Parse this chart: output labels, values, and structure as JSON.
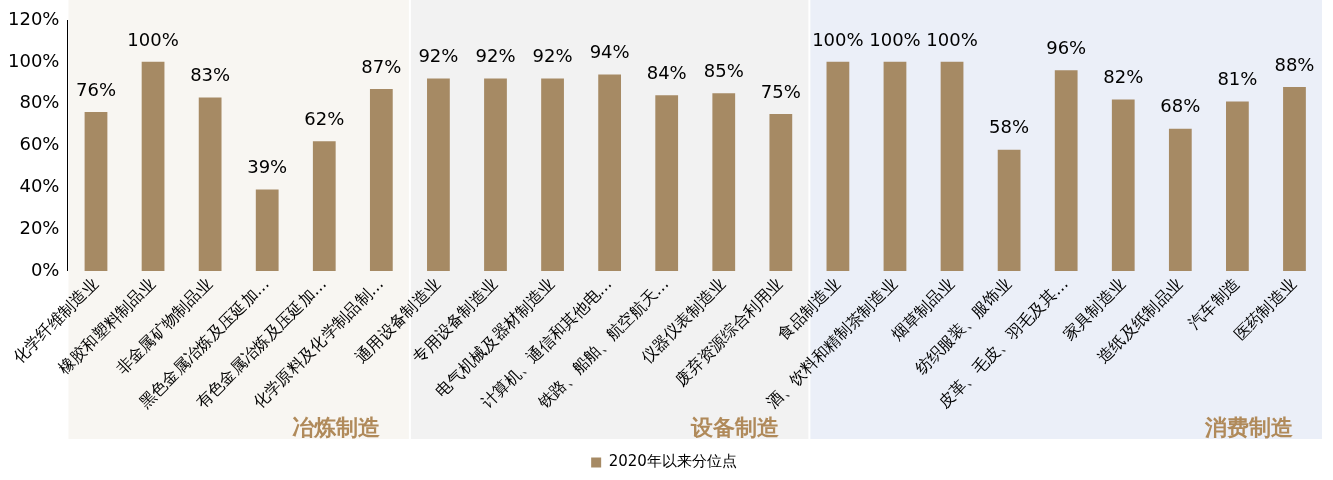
{
  "chart_data": {
    "type": "bar",
    "categories": [
      "化学纤维制造业",
      "橡胶和塑料制品业",
      "非金属矿物制品业",
      "黑色金属冶炼及压延加…",
      "有色金属冶炼及压延加…",
      "化学原料及化学制品制…",
      "通用设备制造业",
      "专用设备制造业",
      "电气机械及器材制造业",
      "计算机、通信和其他电…",
      "铁路、船舶、航空航天…",
      "仪器仪表制造业",
      "废弃资源综合利用业",
      "食品制造业",
      "酒、饮料和精制茶制造业",
      "烟草制品业",
      "纺织服装、服饰业",
      "皮革、毛皮、羽毛及其…",
      "家具制造业",
      "造纸及纸制品业",
      "汽车制造",
      "医药制造业"
    ],
    "series": [
      {
        "name": "2020年以来分位点",
        "color": "#a68a64",
        "values": [
          76,
          100,
          83,
          39,
          62,
          87,
          92,
          92,
          92,
          94,
          84,
          85,
          75,
          100,
          100,
          100,
          58,
          96,
          82,
          68,
          81,
          88
        ],
        "value_labels": [
          "76%",
          "100%",
          "83%",
          "39%",
          "62%",
          "87%",
          "92%",
          "92%",
          "92%",
          "94%",
          "84%",
          "85%",
          "75%",
          "100%",
          "100%",
          "100%",
          "58%",
          "96%",
          "82%",
          "68%",
          "81%",
          "88%"
        ]
      }
    ],
    "ylim": [
      0,
      120
    ],
    "yticks": [
      {
        "value": 0,
        "label": "0%"
      },
      {
        "value": 20,
        "label": "20%"
      },
      {
        "value": 40,
        "label": "40%"
      },
      {
        "value": 60,
        "label": "60%"
      },
      {
        "value": 80,
        "label": "80%"
      },
      {
        "value": 100,
        "label": "100%"
      },
      {
        "value": 120,
        "label": "120%"
      }
    ],
    "grid": false,
    "legend": "bottom",
    "bands": [
      {
        "axis": "x",
        "from": "化学纤维制造业",
        "to": "化学原料及化学制品制…",
        "label": "冶炼制造",
        "color": "#f8f6f2"
      },
      {
        "axis": "x",
        "from": "通用设备制造业",
        "to": "废弃资源综合利用业",
        "label": "设备制造",
        "color": "#f2f2f2"
      },
      {
        "axis": "x",
        "from": "食品制造业",
        "to": "医药制造业",
        "label": "消费制造",
        "color": "#ebeff8"
      }
    ]
  }
}
